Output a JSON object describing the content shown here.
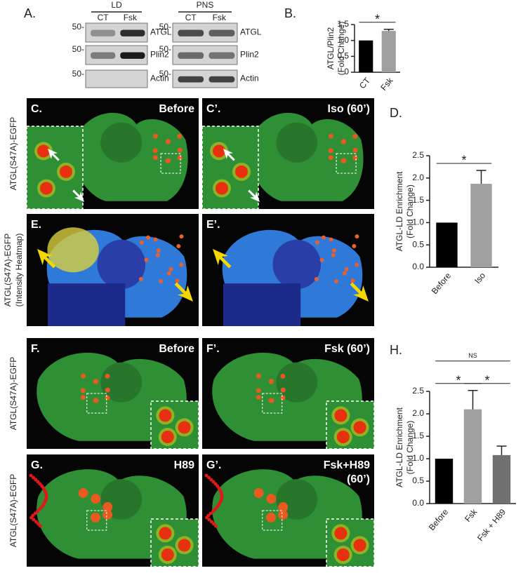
{
  "panel_a": {
    "label": "A.",
    "blots": [
      {
        "title": "LD",
        "lanes": [
          "CT",
          "Fsk"
        ],
        "markers": [
          "50-",
          "50-",
          "50-"
        ],
        "rows": [
          "ATGL",
          "Plin2",
          "Actin"
        ]
      },
      {
        "title": "PNS",
        "lanes": [
          "CT",
          "Fsk"
        ],
        "markers": [
          "50-",
          "50-",
          "50-"
        ],
        "rows": [
          "ATGL",
          "Plin2",
          "Actin"
        ]
      }
    ]
  },
  "images": [
    {
      "label": "C.",
      "caption": [
        "Before"
      ]
    },
    {
      "label": "C’.",
      "caption": [
        "Iso (60’)"
      ]
    },
    {
      "label": "E."
    },
    {
      "label": "E’."
    },
    {
      "label": "F.",
      "caption": [
        "Before"
      ]
    },
    {
      "label": "F’.",
      "caption": [
        "Fsk (60’)"
      ]
    },
    {
      "label": "G.",
      "caption": [
        "H89"
      ]
    },
    {
      "label": "G’.",
      "caption": [
        "Fsk+H89",
        "(60’)"
      ]
    }
  ],
  "side_labels": [
    [
      "ATGL(S47A)-EGFP"
    ],
    [
      "ATGL(S47A)-EGFP",
      "(Intensity Heatmap)"
    ],
    [
      "ATGL(S47A)-EGFP"
    ],
    [
      "ATGL(S47A)-EGFP"
    ]
  ],
  "chart_data": [
    {
      "type": "bar",
      "panel_label": "B.",
      "y_label": [
        "ATGL/Plin2",
        "(Fold Change)"
      ],
      "categories": [
        "CT",
        "Fsk"
      ],
      "values": [
        1.0,
        1.3
      ],
      "errors": [
        null,
        0.05
      ],
      "colors": [
        "#000000",
        "#a0a0a0"
      ],
      "ylim": [
        0,
        1.5
      ],
      "yticks": [
        0,
        0.5,
        {
          "value": 1,
          "label": "1.0"
        },
        1.5
      ],
      "significance": [
        {
          "label": "*",
          "from": "CT",
          "to": "Fsk"
        }
      ]
    },
    {
      "type": "bar",
      "panel_label": "D.",
      "y_label": [
        "ATGL-LD Enrichment",
        "(Fold Change)"
      ],
      "categories": [
        "Before",
        "Iso"
      ],
      "values": [
        1.0,
        1.87
      ],
      "errors": [
        null,
        0.3
      ],
      "colors": [
        "#000000",
        "#a0a0a0"
      ],
      "ylim": [
        0,
        2.5
      ],
      "yticks": [
        {
          "value": 0,
          "label": "0.0"
        },
        0.5,
        {
          "value": 1,
          "label": "1.0"
        },
        1.5,
        {
          "value": 2,
          "label": "2.0"
        },
        2.5
      ],
      "significance": [
        {
          "label": "*",
          "from": "Before",
          "to": "Iso"
        }
      ]
    },
    {
      "type": "bar",
      "panel_label": "H.",
      "y_label": [
        "ATGL-LD Enrichment",
        "(Fold Change)"
      ],
      "categories": [
        "Before",
        "Fsk",
        "Fsk + H89"
      ],
      "values": [
        1.0,
        2.1,
        1.08
      ],
      "errors": [
        null,
        0.42,
        0.2
      ],
      "colors": [
        "#000000",
        "#a0a0a0",
        "#707070"
      ],
      "ylim": [
        0,
        2.5
      ],
      "yticks": [
        {
          "value": 0,
          "label": "0.0"
        },
        0.5,
        {
          "value": 1,
          "label": "1.0"
        },
        1.5,
        {
          "value": 2,
          "label": "2.0"
        },
        2.5
      ],
      "significance": [
        {
          "label": "*",
          "from": "Before",
          "to": "Fsk"
        },
        {
          "label": "*",
          "from": "Fsk",
          "to": "Fsk + H89"
        },
        {
          "label": "NS",
          "from": "Before",
          "to": "Fsk + H89"
        }
      ]
    }
  ]
}
